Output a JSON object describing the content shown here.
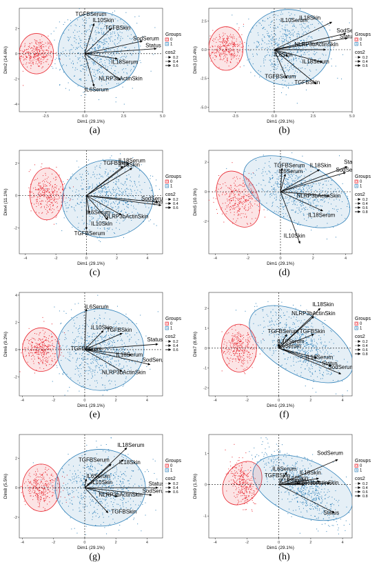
{
  "figure": {
    "legend_groups_title": "Groups",
    "legend_cos2_title": "cos2",
    "group_labels": [
      "0",
      "1"
    ],
    "group_colors": [
      "#e8212a",
      "#2c7fb8"
    ]
  },
  "chart_data": [
    {
      "type": "scatter",
      "caption": "(a)",
      "xlabel": "Dim1 (29.1%)",
      "ylabel": "Dim2 (14.6%)",
      "xlim": [
        -4.2,
        5.0
      ],
      "ylim": [
        -4.6,
        3.6
      ],
      "xticks": [
        -2.5,
        0.0,
        2.5,
        5.0
      ],
      "xtick_labels": [
        "-2.5",
        "0.0",
        "2.5",
        "5.0"
      ],
      "yticks": [
        -4,
        -2,
        0,
        2
      ],
      "ytick_labels": [
        "-4",
        "-2",
        "0",
        "2"
      ],
      "cos2_levels": [
        "0.2",
        "0.4",
        "0.6"
      ],
      "groups": [
        {
          "label": "0",
          "cx": -3.1,
          "cy": 0.0,
          "rx": 1.1,
          "ry": 1.6,
          "angle": 0,
          "sx": 0.55,
          "sy": 0.6,
          "n": 300
        },
        {
          "label": "1",
          "cx": 0.9,
          "cy": 0.2,
          "rx": 2.6,
          "ry": 3.1,
          "angle": 0,
          "sx": 1.2,
          "sy": 1.4,
          "n": 650
        }
      ],
      "vectors": [
        {
          "name": "TGFBSerum",
          "x": 0.0,
          "y": 0.0,
          "lx": -0.6,
          "ly": 3.0
        },
        {
          "name": "IL10Skin",
          "x": 0.6,
          "y": 2.4,
          "lx": 0.5,
          "ly": 2.5
        },
        {
          "name": "TGFBSkin",
          "x": 1.7,
          "y": 2.0,
          "lx": 1.3,
          "ly": 1.9
        },
        {
          "name": "SodSerum",
          "x": 3.7,
          "y": 1.0,
          "lx": 3.1,
          "ly": 1.05
        },
        {
          "name": "Status",
          "x": 4.6,
          "y": 0.4,
          "lx": 3.9,
          "ly": 0.5
        },
        {
          "name": "IL18Serum",
          "x": 2.1,
          "y": -0.4,
          "lx": 1.7,
          "ly": -0.8
        },
        {
          "name": "NLRP3bActinSkin",
          "x": 2.3,
          "y": -2.1,
          "lx": 0.9,
          "ly": -2.1
        },
        {
          "name": "IL6Serum",
          "x": 0.6,
          "y": -2.6,
          "lx": 0.0,
          "ly": -3.0
        }
      ]
    },
    {
      "type": "scatter",
      "caption": "(b)",
      "xlabel": "Dim1 (29.1%)",
      "ylabel": "Dim3 (12.4%)",
      "xlim": [
        -4.2,
        5.0
      ],
      "ylim": [
        -5.4,
        3.6
      ],
      "xticks": [
        -2.5,
        0.0,
        2.5,
        5.0
      ],
      "xtick_labels": [
        "-2.5",
        "0.0",
        "2.5",
        "5.0"
      ],
      "yticks": [
        -5.0,
        -2.5,
        0.0,
        2.5
      ],
      "ytick_labels": [
        "-5.0",
        "-2.5",
        "0.0",
        "2.5"
      ],
      "cos2_levels": [
        "0.2",
        "0.4",
        "0.6"
      ],
      "groups": [
        {
          "label": "0",
          "cx": -3.1,
          "cy": 0.1,
          "rx": 1.1,
          "ry": 1.9,
          "angle": 0,
          "sx": 0.55,
          "sy": 0.7,
          "n": 300
        },
        {
          "label": "1",
          "cx": 0.9,
          "cy": 0.2,
          "rx": 2.7,
          "ry": 3.3,
          "angle": 0,
          "sx": 1.2,
          "sy": 1.5,
          "n": 650
        }
      ],
      "vectors": [
        {
          "name": "IL10Serum",
          "x": 0.0,
          "y": 0.0,
          "lx": 0.4,
          "ly": 2.4
        },
        {
          "name": "IL18Skin",
          "x": 3.7,
          "y": 2.4,
          "lx": 1.6,
          "ly": 2.6
        },
        {
          "name": "SodSerum",
          "x": 4.6,
          "y": 1.4,
          "lx": 4.0,
          "ly": 1.5
        },
        {
          "name": "Status",
          "x": 4.7,
          "y": 1.0,
          "lx": 4.2,
          "ly": 1.0
        },
        {
          "name": "NLRP3bActinSkin",
          "x": 3.3,
          "y": 0.0,
          "lx": 1.3,
          "ly": 0.3
        },
        {
          "name": "IL6Skin",
          "x": 0.9,
          "y": -0.6,
          "lx": 0.0,
          "ly": -0.6
        },
        {
          "name": "IL18Serum",
          "x": 3.1,
          "y": -1.1,
          "lx": 1.8,
          "ly": -1.2
        },
        {
          "name": "TGFBSerum",
          "x": 0.8,
          "y": -2.5,
          "lx": -0.6,
          "ly": -2.5
        },
        {
          "name": "TGFBSkin",
          "x": 2.7,
          "y": -3.0,
          "lx": 1.3,
          "ly": -3.0
        }
      ]
    },
    {
      "type": "scatter",
      "caption": "(c)",
      "xlabel": "Dim1 (29.1%)",
      "ylabel": "Dim4 (11.1%)",
      "xlim": [
        -4.4,
        5.0
      ],
      "ylim": [
        -3.6,
        2.8
      ],
      "xticks": [
        -4,
        -2,
        0,
        2,
        4
      ],
      "xtick_labels": [
        "-4",
        "-2",
        "0",
        "2",
        "4"
      ],
      "yticks": [
        -2,
        0,
        2
      ],
      "ytick_labels": [
        "-2",
        "0",
        "2"
      ],
      "cos2_levels": [
        "0.2",
        "0.4",
        "0.6"
      ],
      "groups": [
        {
          "label": "0",
          "cx": -2.6,
          "cy": 0.1,
          "rx": 1.1,
          "ry": 1.6,
          "angle": 0,
          "sx": 0.55,
          "sy": 0.65,
          "n": 300
        },
        {
          "label": "1",
          "cx": 1.4,
          "cy": -0.2,
          "rx": 3.0,
          "ry": 2.4,
          "angle": 10,
          "sx": 1.3,
          "sy": 1.0,
          "n": 650
        }
      ],
      "vectors": [
        {
          "name": "IL18Serum",
          "x": 2.8,
          "y": 2.0,
          "lx": 2.1,
          "ly": 2.05
        },
        {
          "name": "IL18Skin",
          "x": 3.0,
          "y": 1.7,
          "lx": 2.1,
          "ly": 1.8
        },
        {
          "name": "TGFBSkin",
          "x": 2.4,
          "y": 1.8,
          "lx": 1.1,
          "ly": 1.9
        },
        {
          "name": "SodSerum",
          "x": 4.7,
          "y": -0.4,
          "lx": 3.6,
          "ly": -0.3
        },
        {
          "name": "Status",
          "x": 4.9,
          "y": -0.6,
          "lx": 4.3,
          "ly": -0.5
        },
        {
          "name": "IL6Serum",
          "x": 0.2,
          "y": -1.1,
          "lx": 0.0,
          "ly": -1.15
        },
        {
          "name": "NLRP3bActinSkin",
          "x": 2.3,
          "y": -1.2,
          "lx": 1.2,
          "ly": -1.4
        },
        {
          "name": "IL10Skin",
          "x": 1.4,
          "y": -1.5,
          "lx": 0.3,
          "ly": -1.85
        },
        {
          "name": "TGFBSerum",
          "x": 0.0,
          "y": -2.1,
          "lx": -0.8,
          "ly": -2.45
        }
      ]
    },
    {
      "type": "scatter",
      "caption": "(d)",
      "xlabel": "Dim1 (29.1%)",
      "ylabel": "Dim5 (10.1%)",
      "xlim": [
        -4.4,
        4.4
      ],
      "ylim": [
        -4.2,
        2.8
      ],
      "xticks": [
        -4,
        -2,
        0,
        2,
        4
      ],
      "xtick_labels": [
        "-4",
        "-2",
        "0",
        "2",
        "4"
      ],
      "yticks": [
        -2,
        0,
        2
      ],
      "ytick_labels": [
        "-2",
        "0",
        "2"
      ],
      "cos2_levels": [
        "0.2",
        "0.4",
        "0.6",
        "0.8"
      ],
      "groups": [
        {
          "label": "0",
          "cx": -2.6,
          "cy": -0.5,
          "rx": 1.2,
          "ry": 2.0,
          "angle": 25,
          "sx": 0.6,
          "sy": 0.8,
          "n": 300
        },
        {
          "label": "1",
          "cx": 1.0,
          "cy": 0.0,
          "rx": 3.5,
          "ry": 2.0,
          "angle": -25,
          "sx": 1.4,
          "sy": 0.85,
          "n": 650
        }
      ],
      "vectors": [
        {
          "name": "TGFBSerum",
          "x": 0.1,
          "y": 1.6,
          "lx": -0.4,
          "ly": 1.65
        },
        {
          "name": "IL6Serum",
          "x": 0.3,
          "y": 1.2,
          "lx": -0.1,
          "ly": 1.25
        },
        {
          "name": "IL18Skin",
          "x": 2.4,
          "y": 1.5,
          "lx": 1.8,
          "ly": 1.65
        },
        {
          "name": "Status",
          "x": 4.1,
          "y": 1.7,
          "lx": 3.9,
          "ly": 1.9
        },
        {
          "name": "SodSerum",
          "x": 4.0,
          "y": 1.3,
          "lx": 3.4,
          "ly": 1.35
        },
        {
          "name": "NLRP3bActinSkin",
          "x": 3.0,
          "y": -0.3,
          "lx": 1.0,
          "ly": -0.4
        },
        {
          "name": "IL18Serum",
          "x": 2.6,
          "y": -1.3,
          "lx": 1.7,
          "ly": -1.7
        },
        {
          "name": "IL10Skin",
          "x": 1.2,
          "y": -3.5,
          "lx": 0.2,
          "ly": -3.1
        }
      ]
    },
    {
      "type": "scatter",
      "caption": "(e)",
      "xlabel": "Dim1 (29.1%)",
      "ylabel": "Dim6 (9.2%)",
      "xlim": [
        -4.2,
        5.0
      ],
      "ylim": [
        -3.4,
        4.2
      ],
      "xticks": [
        -4,
        -2,
        0,
        2,
        4
      ],
      "xtick_labels": [
        "-4",
        "-2",
        "0",
        "2",
        "4"
      ],
      "yticks": [
        -2,
        0,
        2,
        4
      ],
      "ytick_labels": [
        "-2",
        "0",
        "2",
        "4"
      ],
      "cos2_levels": [
        "0.2",
        "0.4",
        "0.6"
      ],
      "groups": [
        {
          "label": "0",
          "cx": -2.8,
          "cy": 0.0,
          "rx": 1.2,
          "ry": 1.6,
          "angle": 0,
          "sx": 0.55,
          "sy": 0.6,
          "n": 300
        },
        {
          "label": "1",
          "cx": 1.0,
          "cy": 0.0,
          "rx": 2.8,
          "ry": 3.0,
          "angle": 0,
          "sx": 1.25,
          "sy": 1.3,
          "n": 650
        }
      ],
      "vectors": [
        {
          "name": "IL6Serum",
          "x": 0.1,
          "y": 3.0,
          "lx": 0.0,
          "ly": 3.0
        },
        {
          "name": "IL10Skin",
          "x": 1.2,
          "y": 1.4,
          "lx": 0.4,
          "ly": 1.5
        },
        {
          "name": "TGFBSkin",
          "x": 2.4,
          "y": 1.2,
          "lx": 1.4,
          "ly": 1.3
        },
        {
          "name": "TGFBSerum",
          "x": 0.4,
          "y": 0.0,
          "lx": -0.9,
          "ly": -0.05
        },
        {
          "name": "Status",
          "x": 4.7,
          "y": 0.4,
          "lx": 4.0,
          "ly": 0.6
        },
        {
          "name": "IL18Serum",
          "x": 3.0,
          "y": -0.4,
          "lx": 2.0,
          "ly": -0.5
        },
        {
          "name": "SodSerum",
          "x": 4.2,
          "y": -1.1,
          "lx": 3.7,
          "ly": -0.9
        },
        {
          "name": "NLRP3bActinSkin",
          "x": 2.4,
          "y": -1.6,
          "lx": 1.1,
          "ly": -1.8
        }
      ]
    },
    {
      "type": "scatter",
      "caption": "(f)",
      "xlabel": "Dim1 (29.1%)",
      "ylabel": "Dim7 (8.6%)",
      "xlim": [
        -4.4,
        4.6
      ],
      "ylim": [
        -2.4,
        2.8
      ],
      "xticks": [
        -4,
        -2,
        0,
        2,
        4
      ],
      "xtick_labels": [
        "-4",
        "-2",
        "0",
        "2",
        "4"
      ],
      "yticks": [
        -2,
        -1,
        0,
        1,
        2
      ],
      "ytick_labels": [
        "-2",
        "-1",
        "0",
        "1",
        "2"
      ],
      "cos2_levels": [
        "0.2",
        "0.4",
        "0.6",
        "0.8"
      ],
      "groups": [
        {
          "label": "0",
          "cx": -2.5,
          "cy": 0.0,
          "rx": 1.1,
          "ry": 1.2,
          "angle": 0,
          "sx": 0.5,
          "sy": 0.45,
          "n": 300
        },
        {
          "label": "1",
          "cx": 1.4,
          "cy": 0.2,
          "rx": 3.6,
          "ry": 1.5,
          "angle": -30,
          "sx": 1.4,
          "sy": 0.65,
          "n": 650
        }
      ],
      "vectors": [
        {
          "name": "IL18Skin",
          "x": 2.6,
          "y": 2.0,
          "lx": 2.1,
          "ly": 2.1
        },
        {
          "name": "NLRP3bActinSkin",
          "x": 2.2,
          "y": 1.6,
          "lx": 0.8,
          "ly": 1.65
        },
        {
          "name": "TGFBSerum",
          "x": 0.5,
          "y": 0.7,
          "lx": -0.7,
          "ly": 0.75
        },
        {
          "name": "TGFBSkin",
          "x": 2.2,
          "y": 0.7,
          "lx": 1.3,
          "ly": 0.75
        },
        {
          "name": "IL10Serum",
          "x": 0.0,
          "y": 0.2,
          "lx": -0.1,
          "ly": 0.25
        },
        {
          "name": "IL6Serum",
          "x": 0.0,
          "y": 0.0,
          "lx": -0.1,
          "ly": 0.02
        },
        {
          "name": "IL18Serum",
          "x": 2.4,
          "y": -0.5,
          "lx": 1.7,
          "ly": -0.55
        },
        {
          "name": "Status",
          "x": 3.3,
          "y": -0.9,
          "lx": 2.7,
          "ly": -0.85
        },
        {
          "name": "SodSerum",
          "x": 3.9,
          "y": -1.3,
          "lx": 3.1,
          "ly": -1.05
        }
      ]
    },
    {
      "type": "scatter",
      "caption": "(g)",
      "xlabel": "Dim1 (29.1%)",
      "ylabel": "Dim8 (5.5%)",
      "xlim": [
        -4.2,
        5.0
      ],
      "ylim": [
        -3.4,
        3.6
      ],
      "xticks": [
        -4,
        -2,
        0,
        2,
        4
      ],
      "xtick_labels": [
        "-4",
        "-2",
        "0",
        "2",
        "4"
      ],
      "yticks": [
        -2,
        0,
        2
      ],
      "ytick_labels": [
        "-2",
        "0",
        "2"
      ],
      "cos2_levels": [
        "0.2",
        "0.4",
        "0.6"
      ],
      "groups": [
        {
          "label": "0",
          "cx": -2.8,
          "cy": 0.0,
          "rx": 1.2,
          "ry": 1.6,
          "angle": 0,
          "sx": 0.55,
          "sy": 0.6,
          "n": 300
        },
        {
          "label": "1",
          "cx": 1.0,
          "cy": 0.0,
          "rx": 2.9,
          "ry": 2.6,
          "angle": 0,
          "sx": 1.3,
          "sy": 1.1,
          "n": 650
        }
      ],
      "vectors": [
        {
          "name": "IL18Serum",
          "x": 2.7,
          "y": 2.7,
          "lx": 2.1,
          "ly": 2.75
        },
        {
          "name": "TGFBSerum",
          "x": 1.7,
          "y": 1.6,
          "lx": -0.4,
          "ly": 1.75
        },
        {
          "name": "IL18Skin",
          "x": 2.5,
          "y": 1.9,
          "lx": 2.2,
          "ly": 1.6
        },
        {
          "name": "IL6Serum",
          "x": 0.1,
          "y": 0.6,
          "lx": 0.1,
          "ly": 0.65
        },
        {
          "name": "IL10Skin",
          "x": 0.3,
          "y": 0.3,
          "lx": 0.4,
          "ly": 0.25
        },
        {
          "name": "Status",
          "x": 4.7,
          "y": 0.0,
          "lx": 4.1,
          "ly": 0.15
        },
        {
          "name": "SodSerum",
          "x": 4.3,
          "y": -0.5,
          "lx": 3.7,
          "ly": -0.35
        },
        {
          "name": "NLRP3bActinSkin",
          "x": 2.1,
          "y": -0.6,
          "lx": 0.9,
          "ly": -0.6
        },
        {
          "name": "TGFBSkin",
          "x": 1.5,
          "y": -1.7,
          "lx": 1.7,
          "ly": -1.75
        }
      ]
    },
    {
      "type": "scatter",
      "caption": "(h)",
      "xlabel": "Dim1 (29.1%)",
      "ylabel": "Dim9 (1.5%)",
      "xlim": [
        -4.4,
        4.6
      ],
      "ylim": [
        -1.7,
        1.6
      ],
      "xticks": [
        -4,
        -2,
        0,
        2,
        4
      ],
      "xtick_labels": [
        "-4",
        "-2",
        "0",
        "2",
        "4"
      ],
      "yticks": [
        -1,
        0,
        1
      ],
      "ytick_labels": [
        "-1",
        "0",
        "1"
      ],
      "cos2_levels": [
        "0.2",
        "0.4",
        "0.6",
        "0.8"
      ],
      "groups": [
        {
          "label": "0",
          "cx": -2.3,
          "cy": 0.05,
          "rx": 1.1,
          "ry": 0.75,
          "angle": -35,
          "sx": 0.45,
          "sy": 0.3,
          "n": 300
        },
        {
          "label": "1",
          "cx": 1.5,
          "cy": -0.1,
          "rx": 3.3,
          "ry": 0.9,
          "angle": -22,
          "sx": 1.3,
          "sy": 0.4,
          "n": 650
        }
      ],
      "vectors": [
        {
          "name": "SodSerum",
          "x": 3.7,
          "y": 0.8,
          "lx": 2.4,
          "ly": 0.95
        },
        {
          "name": "IL6Serum",
          "x": 0.5,
          "y": 0.4,
          "lx": -0.4,
          "ly": 0.44
        },
        {
          "name": "IL18Skin",
          "x": 2.5,
          "y": 0.2,
          "lx": 1.3,
          "ly": 0.32
        },
        {
          "name": "TGFBSkin",
          "x": 2.6,
          "y": 0.1,
          "lx": -0.9,
          "ly": 0.24
        },
        {
          "name": "IL10Skin",
          "x": 1.3,
          "y": 0.05,
          "lx": 0.5,
          "ly": 0.15
        },
        {
          "name": "IL18Serum",
          "x": 1.6,
          "y": 0.0,
          "lx": 0.0,
          "ly": 0.07
        },
        {
          "name": "NLRP3bActinSkin",
          "x": 3.2,
          "y": 0.05,
          "lx": 1.0,
          "ly": 0.0
        },
        {
          "name": "Status",
          "x": 3.5,
          "y": -0.9,
          "lx": 2.8,
          "ly": -0.95
        }
      ]
    }
  ]
}
